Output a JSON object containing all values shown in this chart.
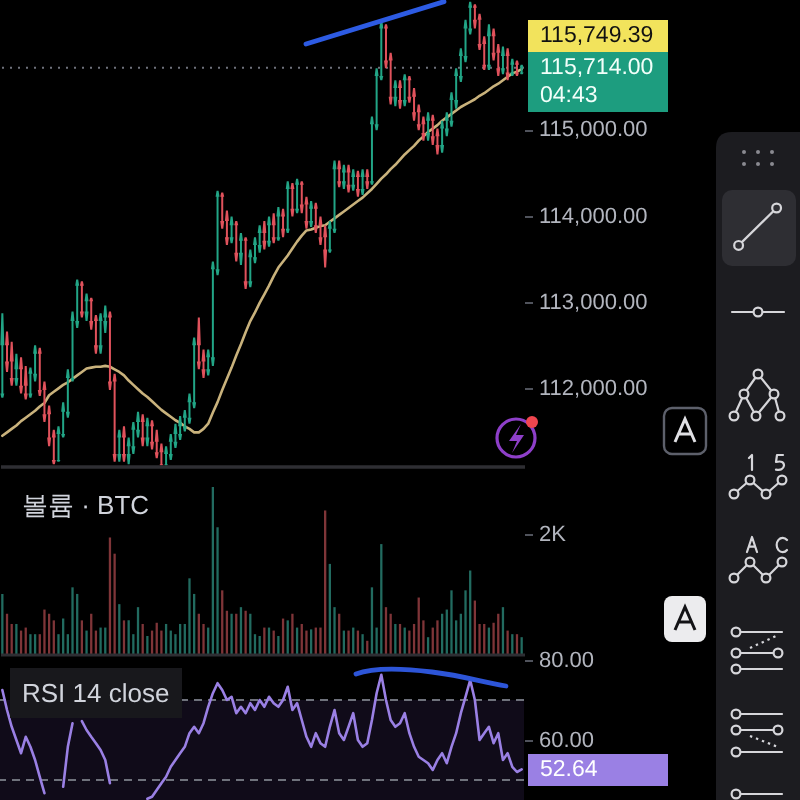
{
  "chart_data": [
    {
      "type": "candlestick",
      "categories": [
        null,
        null,
        null,
        null,
        null,
        null,
        null,
        null,
        null,
        null,
        null,
        null,
        null,
        null,
        null,
        null,
        null,
        null,
        null,
        null,
        null,
        null,
        null,
        null,
        null,
        null,
        null,
        null,
        null,
        null,
        null,
        null,
        null,
        null,
        null,
        null,
        null,
        null,
        null,
        null,
        null,
        null,
        null,
        null,
        null,
        null,
        null,
        null,
        null,
        null,
        null,
        null,
        null,
        null,
        null,
        null,
        null,
        null,
        null,
        null,
        null,
        null,
        null,
        null,
        null,
        null,
        null,
        null,
        null,
        null,
        null,
        null,
        null,
        null,
        null,
        null,
        null,
        null,
        null,
        null,
        null,
        null,
        null,
        null,
        null,
        null,
        null,
        null,
        null,
        null,
        null,
        null,
        null,
        null,
        null,
        null,
        null,
        null,
        null,
        null,
        null,
        null,
        null,
        null,
        null,
        null,
        null,
        null,
        null,
        null,
        null,
        null
      ],
      "ohlc": [
        [
          111940,
          112870,
          111890,
          112500
        ],
        [
          112500,
          112660,
          112190,
          112310
        ],
        [
          112310,
          112540,
          112030,
          112120
        ],
        [
          112120,
          112400,
          112030,
          112220
        ],
        [
          112220,
          112360,
          111940,
          112030
        ],
        [
          112030,
          112260,
          111870,
          111940
        ],
        [
          111940,
          112240,
          111890,
          112170
        ],
        [
          112170,
          112500,
          112080,
          112400
        ],
        [
          112400,
          112470,
          111910,
          111980
        ],
        [
          111980,
          112080,
          111610,
          111700
        ],
        [
          111700,
          111800,
          111330,
          111430
        ],
        [
          111430,
          111520,
          111120,
          111170
        ],
        [
          111170,
          111560,
          111150,
          111470
        ],
        [
          111470,
          111840,
          111430,
          111730
        ],
        [
          111730,
          112220,
          111660,
          112120
        ],
        [
          112120,
          112890,
          112080,
          112780
        ],
        [
          112780,
          113260,
          112700,
          113190
        ],
        [
          113190,
          113240,
          112820,
          112890
        ],
        [
          112890,
          113100,
          112780,
          113010
        ],
        [
          113010,
          113050,
          112680,
          112780
        ],
        [
          112780,
          112850,
          112400,
          112500
        ],
        [
          112500,
          112870,
          112400,
          112780
        ],
        [
          112780,
          112960,
          112640,
          112820
        ],
        [
          112820,
          112890,
          111980,
          112080
        ],
        [
          112080,
          112170,
          111150,
          111240
        ],
        [
          111240,
          111520,
          111150,
          111430
        ],
        [
          111430,
          111560,
          111150,
          111240
        ],
        [
          111240,
          111430,
          111120,
          111330
        ],
        [
          111330,
          111610,
          111240,
          111520
        ],
        [
          111520,
          111730,
          111430,
          111610
        ],
        [
          111610,
          111700,
          111330,
          111430
        ],
        [
          111430,
          111660,
          111330,
          111560
        ],
        [
          111560,
          111630,
          111290,
          111380
        ],
        [
          111380,
          111520,
          111190,
          111260
        ],
        [
          111260,
          111360,
          111110,
          111120
        ],
        [
          111120,
          111330,
          111110,
          111240
        ],
        [
          111240,
          111470,
          111170,
          111380
        ],
        [
          111380,
          111590,
          111310,
          111470
        ],
        [
          111470,
          111680,
          111400,
          111560
        ],
        [
          111560,
          111750,
          111500,
          111660
        ],
        [
          111660,
          111940,
          111590,
          111840
        ],
        [
          111840,
          112590,
          111770,
          112500
        ],
        [
          112500,
          112820,
          112220,
          112310
        ],
        [
          112310,
          112450,
          112120,
          112220
        ],
        [
          112220,
          112450,
          112150,
          112360
        ],
        [
          112360,
          113470,
          112260,
          113380
        ],
        [
          113380,
          114290,
          113310,
          114220
        ],
        [
          114220,
          114270,
          113850,
          113940
        ],
        [
          113940,
          114060,
          113660,
          113750
        ],
        [
          113750,
          113990,
          113680,
          113890
        ],
        [
          113890,
          113940,
          113470,
          113570
        ],
        [
          113570,
          113800,
          113430,
          113710
        ],
        [
          113710,
          113750,
          113150,
          113240
        ],
        [
          113240,
          113610,
          113170,
          113520
        ],
        [
          113520,
          113750,
          113450,
          113660
        ],
        [
          113660,
          113890,
          113570,
          113800
        ],
        [
          113800,
          113940,
          113610,
          113710
        ],
        [
          113710,
          113990,
          113640,
          113890
        ],
        [
          113890,
          114030,
          113680,
          113750
        ],
        [
          113750,
          114100,
          113710,
          113990
        ],
        [
          113990,
          114080,
          113750,
          113850
        ],
        [
          113850,
          114400,
          113800,
          114310
        ],
        [
          114310,
          114380,
          113990,
          114080
        ],
        [
          114080,
          114430,
          114030,
          114360
        ],
        [
          114360,
          114400,
          114030,
          114130
        ],
        [
          114130,
          114220,
          113850,
          113940
        ],
        [
          113940,
          114170,
          113870,
          114080
        ],
        [
          114080,
          114150,
          113800,
          113890
        ],
        [
          113890,
          113990,
          113660,
          113750
        ],
        [
          113750,
          113890,
          113400,
          113610
        ],
        [
          113610,
          113940,
          113570,
          113850
        ],
        [
          113850,
          114640,
          113800,
          114540
        ],
        [
          114540,
          114640,
          114330,
          114400
        ],
        [
          114400,
          114590,
          114310,
          114500
        ],
        [
          114500,
          114590,
          114270,
          114360
        ],
        [
          114360,
          114540,
          114290,
          114450
        ],
        [
          114450,
          114520,
          114220,
          114310
        ],
        [
          114310,
          114540,
          114240,
          114450
        ],
        [
          114450,
          114540,
          114310,
          114400
        ],
        [
          114400,
          115150,
          114360,
          115060
        ],
        [
          115060,
          115710,
          114990,
          115620
        ],
        [
          115620,
          116270,
          115570,
          116170
        ],
        [
          116170,
          116220,
          115710,
          115800
        ],
        [
          115800,
          115890,
          115290,
          115380
        ],
        [
          115380,
          115570,
          115270,
          115480
        ],
        [
          115480,
          115570,
          115240,
          115340
        ],
        [
          115340,
          115640,
          115270,
          115570
        ],
        [
          115570,
          115620,
          115310,
          115380
        ],
        [
          115380,
          115480,
          115100,
          115200
        ],
        [
          115200,
          115290,
          114990,
          115060
        ],
        [
          115060,
          115150,
          114870,
          114960
        ],
        [
          114960,
          115200,
          114870,
          115100
        ],
        [
          115100,
          115170,
          114820,
          114920
        ],
        [
          114920,
          115010,
          114710,
          114820
        ],
        [
          114820,
          115100,
          114730,
          115010
        ],
        [
          115010,
          115200,
          114920,
          115100
        ],
        [
          115100,
          115430,
          115030,
          115340
        ],
        [
          115340,
          115710,
          115240,
          115620
        ],
        [
          115620,
          115940,
          115550,
          115850
        ],
        [
          115850,
          116270,
          115780,
          116170
        ],
        [
          116170,
          116480,
          116100,
          116410
        ],
        [
          116410,
          116450,
          116170,
          116270
        ],
        [
          116270,
          116340,
          115920,
          115990
        ],
        [
          115990,
          116080,
          115690,
          115750
        ],
        [
          115750,
          116220,
          115690,
          116080
        ],
        [
          116080,
          116170,
          115800,
          115890
        ],
        [
          115890,
          115990,
          115620,
          115710
        ],
        [
          115710,
          115960,
          115640,
          115850
        ],
        [
          115850,
          115940,
          115570,
          115660
        ],
        [
          115660,
          115820,
          115620,
          115750
        ],
        [
          115750,
          115800,
          115620,
          115660
        ],
        [
          115660,
          115750,
          115640,
          115714
        ]
      ],
      "series": [
        {
          "type": "line",
          "color": "#c9b27c",
          "values": [
            111450,
            111490,
            111530,
            111570,
            111620,
            111660,
            111700,
            111740,
            111790,
            111830,
            111920,
            111960,
            112000,
            112040,
            112070,
            112110,
            112150,
            112190,
            112230,
            112240,
            112250,
            112250,
            112260,
            112250,
            112220,
            112190,
            112150,
            112090,
            112040,
            111990,
            111940,
            111900,
            111850,
            111800,
            111750,
            111710,
            111670,
            111630,
            111600,
            111560,
            111530,
            111490,
            111490,
            111530,
            111590,
            111720,
            111840,
            111980,
            112110,
            112240,
            112380,
            112510,
            112650,
            112780,
            112880,
            112990,
            113090,
            113190,
            113300,
            113400,
            113470,
            113540,
            113620,
            113700,
            113770,
            113830,
            113840,
            113860,
            113880,
            113890,
            113930,
            113970,
            114010,
            114050,
            114090,
            114130,
            114170,
            114210,
            114260,
            114310,
            114370,
            114430,
            114480,
            114540,
            114590,
            114650,
            114710,
            114760,
            114810,
            114870,
            114920,
            114970,
            115010,
            115050,
            115100,
            115140,
            115180,
            115220,
            115260,
            115290,
            115320,
            115350,
            115390,
            115420,
            115460,
            115500,
            115530,
            115570,
            115610,
            115650,
            115670,
            115700
          ]
        }
      ],
      "ylim": [
        111100,
        116500
      ],
      "yticks": [
        {
          "value": 112000,
          "label": "112,000.00"
        },
        {
          "value": 113000,
          "label": "113,000.00"
        },
        {
          "value": 114000,
          "label": "114,000.00"
        },
        {
          "value": 115000,
          "label": "115,000.00"
        }
      ],
      "tick_labels": "y",
      "ref_lines": [
        {
          "axis": "y",
          "value": 115714,
          "label": "115,714.00",
          "line_style": "dotted"
        }
      ],
      "annotations": [
        "115,749.39",
        "04:43"
      ]
    },
    {
      "type": "bar",
      "title": "볼륨 · BTC",
      "categories": [
        null,
        null,
        null,
        null,
        null,
        null,
        null,
        null,
        null,
        null,
        null,
        null,
        null,
        null,
        null,
        null,
        null,
        null,
        null,
        null,
        null,
        null,
        null,
        null,
        null,
        null,
        null,
        null,
        null,
        null,
        null,
        null,
        null,
        null,
        null,
        null,
        null,
        null,
        null,
        null,
        null,
        null,
        null,
        null,
        null,
        null,
        null,
        null,
        null,
        null,
        null,
        null,
        null,
        null,
        null,
        null,
        null,
        null,
        null,
        null,
        null,
        null,
        null,
        null,
        null,
        null,
        null,
        null,
        null,
        null,
        null,
        null,
        null,
        null,
        null,
        null,
        null,
        null,
        null,
        null,
        null,
        null,
        null,
        null,
        null,
        null,
        null,
        null,
        null,
        null,
        null,
        null,
        null,
        null,
        null,
        null,
        null,
        null,
        null,
        null,
        null,
        null,
        null,
        null,
        null,
        null,
        null,
        null,
        null,
        null,
        null,
        null
      ],
      "values": [
        1000,
        670,
        500,
        500,
        390,
        440,
        330,
        330,
        330,
        740,
        670,
        560,
        330,
        590,
        330,
        1110,
        1000,
        560,
        390,
        670,
        390,
        440,
        440,
        1940,
        1670,
        830,
        560,
        560,
        330,
        780,
        500,
        300,
        390,
        520,
        390,
        500,
        390,
        330,
        500,
        500,
        1260,
        1000,
        670,
        500,
        440,
        2780,
        2110,
        1060,
        720,
        670,
        670,
        780,
        720,
        670,
        330,
        300,
        440,
        440,
        390,
        300,
        590,
        560,
        670,
        440,
        500,
        390,
        410,
        440,
        440,
        2390,
        1500,
        780,
        670,
        390,
        390,
        440,
        390,
        330,
        220,
        1110,
        440,
        1830,
        780,
        670,
        500,
        500,
        440,
        390,
        500,
        940,
        560,
        280,
        440,
        560,
        670,
        740,
        1060,
        560,
        670,
        1060,
        1390,
        890,
        500,
        500,
        440,
        520,
        670,
        780,
        390,
        330,
        330,
        280
      ],
      "colors": [
        "#226b60",
        "#7f3538",
        "#7f3538",
        "#226b60",
        "#7f3538",
        "#7f3538",
        "#226b60",
        "#226b60",
        "#7f3538",
        "#7f3538",
        "#7f3538",
        "#7f3538",
        "#226b60",
        "#226b60",
        "#226b60",
        "#226b60",
        "#226b60",
        "#7f3538",
        "#226b60",
        "#7f3538",
        "#7f3538",
        "#226b60",
        "#226b60",
        "#7f3538",
        "#7f3538",
        "#226b60",
        "#7f3538",
        "#226b60",
        "#226b60",
        "#226b60",
        "#7f3538",
        "#226b60",
        "#7f3538",
        "#7f3538",
        "#7f3538",
        "#226b60",
        "#226b60",
        "#226b60",
        "#226b60",
        "#226b60",
        "#226b60",
        "#226b60",
        "#7f3538",
        "#7f3538",
        "#226b60",
        "#226b60",
        "#226b60",
        "#7f3538",
        "#7f3538",
        "#226b60",
        "#7f3538",
        "#226b60",
        "#7f3538",
        "#226b60",
        "#226b60",
        "#226b60",
        "#7f3538",
        "#226b60",
        "#7f3538",
        "#226b60",
        "#7f3538",
        "#226b60",
        "#7f3538",
        "#226b60",
        "#7f3538",
        "#7f3538",
        "#226b60",
        "#7f3538",
        "#7f3538",
        "#7f3538",
        "#226b60",
        "#226b60",
        "#7f3538",
        "#226b60",
        "#7f3538",
        "#226b60",
        "#7f3538",
        "#226b60",
        "#7f3538",
        "#226b60",
        "#226b60",
        "#226b60",
        "#7f3538",
        "#7f3538",
        "#226b60",
        "#7f3538",
        "#226b60",
        "#7f3538",
        "#7f3538",
        "#7f3538",
        "#7f3538",
        "#226b60",
        "#7f3538",
        "#7f3538",
        "#226b60",
        "#226b60",
        "#226b60",
        "#226b60",
        "#226b60",
        "#226b60",
        "#226b60",
        "#7f3538",
        "#7f3538",
        "#7f3538",
        "#226b60",
        "#7f3538",
        "#7f3538",
        "#226b60",
        "#7f3538",
        "#226b60",
        "#7f3538",
        "#226b60"
      ],
      "ylim": [
        0,
        3130
      ],
      "yticks": [
        {
          "value": 2000,
          "label": "2K"
        }
      ],
      "tick_labels": "y"
    },
    {
      "type": "line",
      "title": "RSI 14 close",
      "categories": [
        null,
        null,
        null,
        null,
        null,
        null,
        null,
        null,
        null,
        null,
        null,
        null,
        null,
        null,
        null,
        null,
        null,
        null,
        null,
        null,
        null,
        null,
        null,
        null,
        null,
        null,
        null,
        null,
        null,
        null,
        null,
        null,
        null,
        null,
        null,
        null,
        null,
        null,
        null,
        null,
        null,
        null,
        null,
        null,
        null,
        null,
        null,
        null,
        null,
        null,
        null,
        null,
        null,
        null,
        null,
        null,
        null,
        null,
        null,
        null,
        null,
        null,
        null,
        null,
        null,
        null,
        null,
        null,
        null,
        null,
        null,
        null,
        null,
        null,
        null,
        null,
        null,
        null,
        null,
        null,
        null,
        null,
        null,
        null,
        null,
        null,
        null,
        null,
        null,
        null,
        null,
        null,
        null,
        null,
        null,
        null,
        null,
        null,
        null,
        null,
        null,
        null,
        null,
        null,
        null,
        null,
        null,
        null,
        null,
        null,
        null,
        null
      ],
      "series": [
        {
          "color": "#9a80e4",
          "values": [
            72.5,
            67.5,
            63.3,
            60,
            56.7,
            60.8,
            58.3,
            55,
            50.8,
            46.7,
            null,
            null,
            null,
            48.3,
            58.3,
            64.2,
            null,
            64.7,
            62.5,
            60.8,
            59.2,
            57.5,
            55,
            49.2,
            null,
            null,
            null,
            null,
            null,
            null,
            null,
            45.3,
            45.8,
            47.5,
            49.2,
            50.8,
            53.3,
            55,
            56.7,
            58.3,
            61.7,
            63.3,
            61.7,
            64.2,
            68.3,
            71.7,
            74.2,
            72.5,
            70,
            70.8,
            66.7,
            68.3,
            66.7,
            69.2,
            67.5,
            70,
            68.3,
            70.8,
            69.2,
            68.3,
            70,
            73.3,
            67.5,
            69.2,
            65,
            60.8,
            58.3,
            61.7,
            59.2,
            58.3,
            63.3,
            67.5,
            61.7,
            60,
            63.3,
            66.7,
            60,
            58.3,
            59.2,
            65,
            71.7,
            76.3,
            70,
            65,
            63.3,
            64.2,
            66.7,
            61.7,
            58.3,
            55.8,
            55,
            54.2,
            52.5,
            55,
            56.7,
            54.2,
            58.3,
            61.7,
            66.7,
            70.8,
            75,
            70,
            60,
            61.7,
            63.3,
            59.2,
            61.7,
            55,
            56.7,
            53.3,
            52,
            52.64
          ]
        }
      ],
      "ylim": [
        45,
        81.5
      ],
      "yticks": [
        {
          "value": 60,
          "label": "60.00"
        },
        {
          "value": 80,
          "label": "80.00"
        }
      ],
      "tick_labels": "y",
      "ref_lines": [
        {
          "axis": "y",
          "value": 70,
          "line_style": "dashed"
        },
        {
          "axis": "y",
          "value": 50,
          "line_style": "dashed"
        }
      ],
      "bands": [
        {
          "axis": "y",
          "from": 45,
          "to": 70,
          "color": "#7e57c2"
        }
      ],
      "annotations": [
        "52.64"
      ]
    }
  ]
}
